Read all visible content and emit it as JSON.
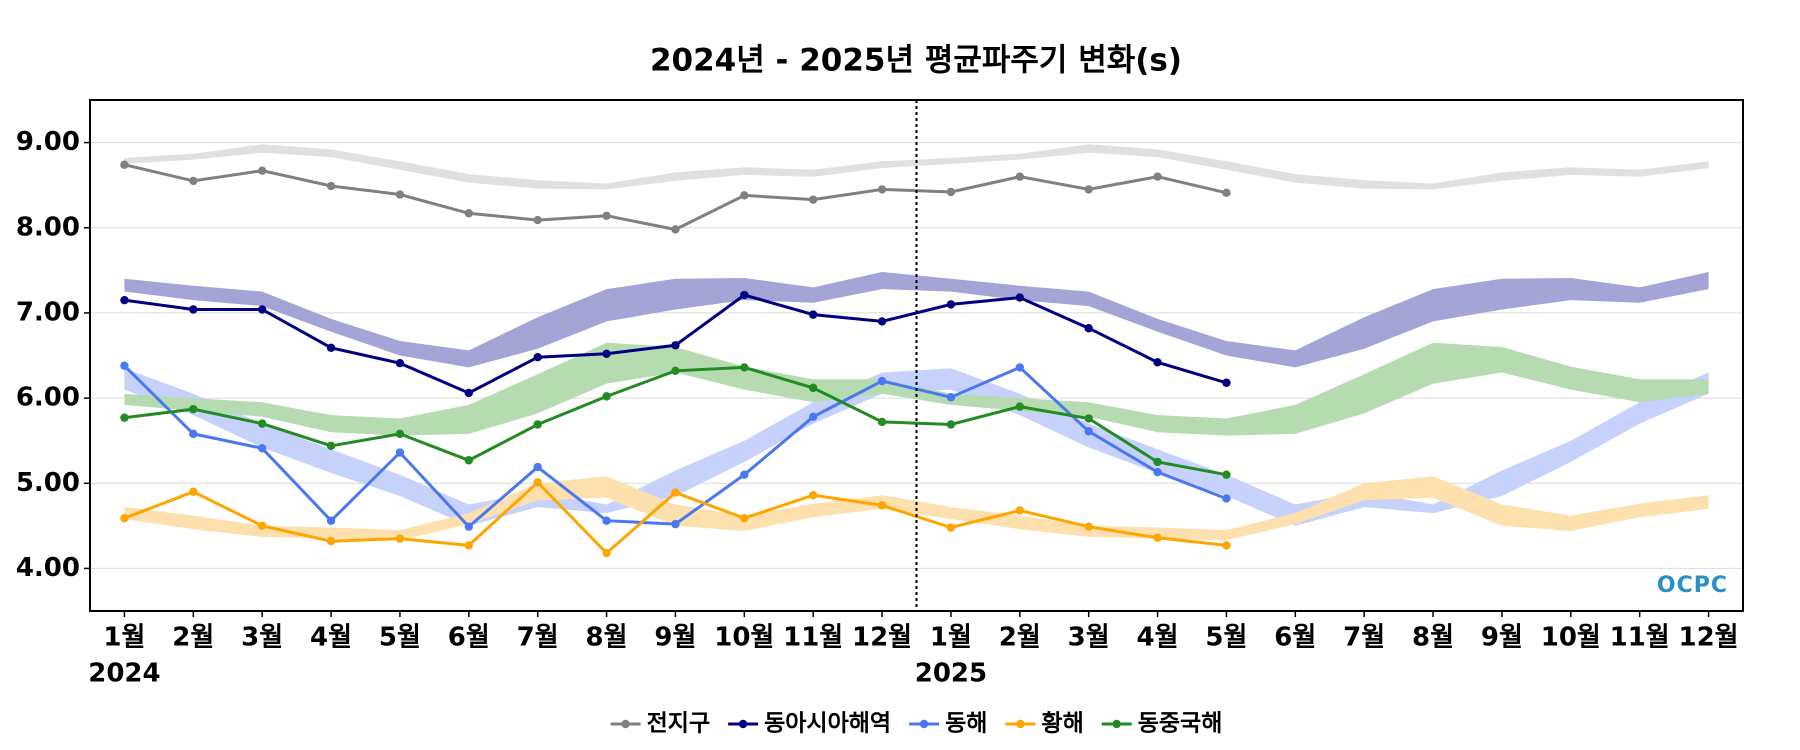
{
  "chart_data": {
    "type": "line",
    "title": "2024년 - 2025년 평균파주기 변화(s)",
    "categories": [
      "1월",
      "2월",
      "3월",
      "4월",
      "5월",
      "6월",
      "7월",
      "8월",
      "9월",
      "10월",
      "11월",
      "12월",
      "1월",
      "2월",
      "3월",
      "4월",
      "5월",
      "6월",
      "7월",
      "8월",
      "9월",
      "10월",
      "11월",
      "12월"
    ],
    "year_labels": [
      "2024",
      "2025"
    ],
    "ylim": [
      3.5,
      9.5
    ],
    "yticks": [
      {
        "value": 4,
        "label": "4.00"
      },
      {
        "value": 5,
        "label": "5.00"
      },
      {
        "value": 6,
        "label": "6.00"
      },
      {
        "value": 7,
        "label": "7.00"
      },
      {
        "value": 8,
        "label": "8.00"
      },
      {
        "value": 9,
        "label": "9.00"
      }
    ],
    "grid": true,
    "legend": "bottom",
    "watermark": "OCPC",
    "series": [
      {
        "name": "전지구",
        "color": "#808080",
        "band_color": "#e0e0e0",
        "values": [
          8.74,
          8.55,
          8.67,
          8.49,
          8.39,
          8.17,
          8.09,
          8.14,
          7.98,
          8.38,
          8.33,
          8.45,
          8.42,
          8.6,
          8.45,
          8.6,
          8.41,
          null,
          null,
          null,
          null,
          null,
          null,
          null
        ],
        "band_high": [
          8.82,
          8.87,
          8.98,
          8.92,
          8.78,
          8.63,
          8.56,
          8.52,
          8.65,
          8.71,
          8.68,
          8.78,
          8.82,
          8.87,
          8.98,
          8.92,
          8.78,
          8.63,
          8.56,
          8.52,
          8.65,
          8.71,
          8.68,
          8.78
        ],
        "band_low": [
          8.75,
          8.8,
          8.88,
          8.83,
          8.68,
          8.53,
          8.46,
          8.45,
          8.55,
          8.62,
          8.6,
          8.7,
          8.75,
          8.8,
          8.88,
          8.83,
          8.68,
          8.53,
          8.46,
          8.45,
          8.55,
          8.62,
          8.6,
          8.7
        ]
      },
      {
        "name": "동아시아해역",
        "color": "#000080",
        "band_color": "#a4a4d6",
        "values": [
          7.15,
          7.04,
          7.04,
          6.59,
          6.41,
          6.06,
          6.48,
          6.52,
          6.62,
          7.21,
          6.98,
          6.9,
          7.1,
          7.18,
          6.82,
          6.42,
          6.18,
          null,
          null,
          null,
          null,
          null,
          null,
          null
        ],
        "band_high": [
          7.4,
          7.32,
          7.25,
          6.93,
          6.67,
          6.56,
          6.95,
          7.28,
          7.4,
          7.41,
          7.3,
          7.48,
          7.4,
          7.32,
          7.25,
          6.93,
          6.67,
          6.56,
          6.95,
          7.28,
          7.4,
          7.41,
          7.3,
          7.48
        ],
        "band_low": [
          7.25,
          7.15,
          7.08,
          6.78,
          6.5,
          6.36,
          6.58,
          6.9,
          7.04,
          7.15,
          7.12,
          7.28,
          7.25,
          7.15,
          7.08,
          6.78,
          6.5,
          6.36,
          6.58,
          6.9,
          7.04,
          7.15,
          7.12,
          7.28
        ]
      },
      {
        "name": "동해",
        "color": "#4a78f0",
        "band_color": "#c6d2fb",
        "values": [
          6.38,
          5.58,
          5.41,
          4.56,
          5.36,
          4.49,
          5.19,
          4.56,
          4.52,
          5.1,
          5.78,
          6.2,
          6.01,
          6.36,
          5.61,
          5.13,
          4.82,
          null,
          null,
          null,
          null,
          null,
          null,
          null
        ],
        "band_high": [
          6.35,
          6.05,
          5.7,
          5.4,
          5.1,
          4.75,
          4.9,
          4.75,
          5.15,
          5.5,
          5.95,
          6.3,
          6.35,
          6.05,
          5.7,
          5.4,
          5.1,
          4.75,
          4.9,
          4.75,
          5.15,
          5.5,
          5.95,
          6.3
        ],
        "band_low": [
          6.1,
          5.8,
          5.42,
          5.12,
          4.85,
          4.5,
          4.72,
          4.65,
          4.85,
          5.25,
          5.7,
          6.05,
          6.1,
          5.8,
          5.42,
          5.12,
          4.85,
          4.5,
          4.72,
          4.65,
          4.85,
          5.25,
          5.7,
          6.05
        ]
      },
      {
        "name": "황해",
        "color": "#ffa500",
        "band_color": "#fde0ad",
        "values": [
          4.59,
          4.9,
          4.5,
          4.32,
          4.35,
          4.27,
          5.01,
          4.18,
          4.89,
          4.59,
          4.86,
          4.74,
          4.48,
          4.68,
          4.49,
          4.36,
          4.27,
          null,
          null,
          null,
          null,
          null,
          null,
          null
        ],
        "band_high": [
          4.72,
          4.62,
          4.5,
          4.48,
          4.45,
          4.65,
          5.0,
          5.08,
          4.75,
          4.62,
          4.76,
          4.86,
          4.72,
          4.62,
          4.5,
          4.48,
          4.45,
          4.65,
          5.0,
          5.08,
          4.75,
          4.62,
          4.76,
          4.86
        ],
        "band_low": [
          4.58,
          4.46,
          4.37,
          4.35,
          4.33,
          4.52,
          4.8,
          4.83,
          4.5,
          4.44,
          4.6,
          4.7,
          4.58,
          4.46,
          4.37,
          4.35,
          4.33,
          4.52,
          4.8,
          4.83,
          4.5,
          4.44,
          4.6,
          4.7
        ]
      },
      {
        "name": "동중국해",
        "color": "#228b22",
        "band_color": "#b6dbb1",
        "values": [
          5.77,
          5.87,
          5.7,
          5.44,
          5.58,
          5.27,
          5.69,
          6.02,
          6.32,
          6.36,
          6.12,
          5.72,
          5.69,
          5.9,
          5.76,
          5.25,
          5.1,
          null,
          null,
          null,
          null,
          null,
          null,
          null
        ],
        "band_high": [
          6.05,
          6.0,
          5.95,
          5.8,
          5.76,
          5.92,
          6.28,
          6.65,
          6.6,
          6.37,
          6.22,
          6.22,
          6.05,
          6.0,
          5.95,
          5.8,
          5.76,
          5.92,
          6.28,
          6.65,
          6.6,
          6.37,
          6.22,
          6.22
        ],
        "band_low": [
          5.92,
          5.85,
          5.78,
          5.6,
          5.56,
          5.58,
          5.82,
          6.17,
          6.3,
          6.1,
          5.95,
          6.05,
          5.92,
          5.85,
          5.78,
          5.6,
          5.56,
          5.58,
          5.82,
          6.17,
          6.3,
          6.1,
          5.95,
          6.05
        ]
      }
    ]
  }
}
